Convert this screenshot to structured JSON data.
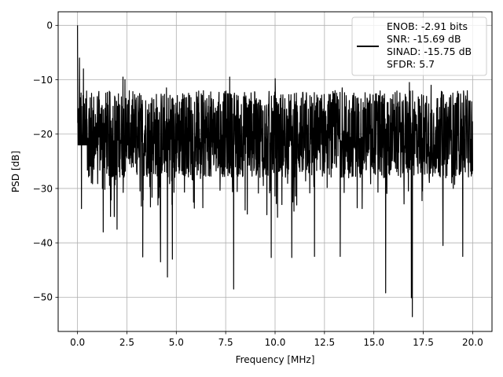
{
  "chart_data": {
    "type": "line",
    "xlabel": "Frequency [MHz]",
    "ylabel": "PSD [dB]",
    "xlim": [
      -0.98,
      20.98
    ],
    "ylim": [
      -56.3,
      2.5
    ],
    "x_ticks": [
      0.0,
      2.5,
      5.0,
      7.5,
      10.0,
      12.5,
      15.0,
      17.5,
      20.0
    ],
    "x_tick_labels": [
      "0.0",
      "2.5",
      "5.0",
      "7.5",
      "10.0",
      "12.5",
      "15.0",
      "17.5",
      "20.0"
    ],
    "y_ticks": [
      0,
      -10,
      -20,
      -30,
      -40,
      -50
    ],
    "y_tick_labels": [
      "0",
      "−10",
      "−20",
      "−30",
      "−40",
      "−50"
    ],
    "grid": true,
    "legend_position": "top-right",
    "legend_lines": [
      "ENOB: -2.91 bits",
      "SNR: -15.69 dB",
      "SINAD: -15.75 dB",
      "SFDR: 5.7"
    ],
    "series": [
      {
        "color": "#000000",
        "x_range": [
          0,
          20
        ],
        "points": 2000,
        "peak": {
          "x": 0.0,
          "y": 0.0
        },
        "typical_band": [
          -28,
          -12
        ],
        "dips": [
          {
            "x": 0.2,
            "y": -33.7
          },
          {
            "x": 1.3,
            "y": -38.0
          },
          {
            "x": 2.0,
            "y": -37.5
          },
          {
            "x": 3.3,
            "y": -42.6
          },
          {
            "x": 4.2,
            "y": -43.5
          },
          {
            "x": 4.8,
            "y": -43.0
          },
          {
            "x": 4.55,
            "y": -46.3
          },
          {
            "x": 7.9,
            "y": -48.5
          },
          {
            "x": 9.8,
            "y": -42.7
          },
          {
            "x": 10.85,
            "y": -42.7
          },
          {
            "x": 12.0,
            "y": -42.5
          },
          {
            "x": 13.3,
            "y": -42.5
          },
          {
            "x": 15.6,
            "y": -49.2
          },
          {
            "x": 16.9,
            "y": -50.1
          },
          {
            "x": 16.95,
            "y": -53.6
          },
          {
            "x": 18.5,
            "y": -40.5
          },
          {
            "x": 19.5,
            "y": -42.5
          }
        ],
        "spikes": [
          {
            "x": 0.1,
            "y": -6.0
          },
          {
            "x": 0.3,
            "y": -8.0
          },
          {
            "x": 2.3,
            "y": -9.5
          },
          {
            "x": 2.4,
            "y": -10.0
          },
          {
            "x": 4.5,
            "y": -11.5
          },
          {
            "x": 7.7,
            "y": -9.5
          },
          {
            "x": 10.0,
            "y": -9.8
          },
          {
            "x": 13.4,
            "y": -11.5
          },
          {
            "x": 16.8,
            "y": -10.5
          },
          {
            "x": 17.9,
            "y": -11.0
          }
        ]
      }
    ]
  }
}
